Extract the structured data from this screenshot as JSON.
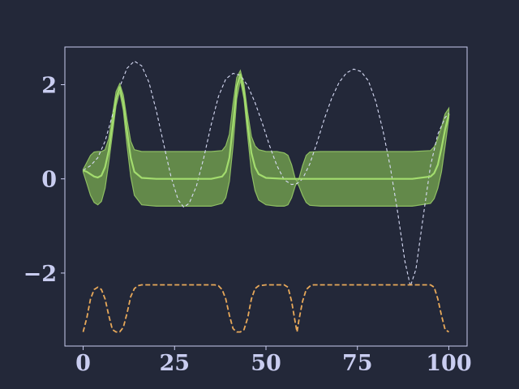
{
  "chart_data": {
    "type": "line",
    "title": "",
    "xlabel": "",
    "ylabel": "",
    "xlim": [
      -5,
      105
    ],
    "ylim": [
      -3.55,
      2.8
    ],
    "grid": false,
    "legend": "none",
    "x_ticks": [
      0,
      25,
      50,
      75,
      100
    ],
    "x_tick_labels": [
      "0",
      "25",
      "50",
      "75",
      "100"
    ],
    "y_ticks": [
      -2,
      0,
      2
    ],
    "y_tick_labels": [
      "−2",
      "0",
      "2"
    ],
    "colors": {
      "background": "#232839",
      "axes": "#c9cdf0",
      "mean": "#a3dc6e",
      "band_fill": "#6e9a4e",
      "band_edge": "#8fbf63",
      "target": "#d8dcf6",
      "bottom": "#e8a95a"
    },
    "series": [
      {
        "style": "dashed thin",
        "x": [
          0,
          2,
          4,
          6,
          8,
          10,
          12,
          14,
          16,
          18,
          20,
          22,
          24,
          26,
          27.5,
          29,
          31,
          33,
          35,
          37,
          39,
          41,
          43,
          45,
          47,
          49,
          51,
          53,
          55,
          57,
          58.5,
          60,
          62,
          64,
          66,
          68,
          70,
          72,
          74,
          76,
          78,
          80,
          82,
          84,
          86,
          88,
          89.5,
          91,
          93,
          95,
          97,
          99,
          100
        ],
        "y": [
          0.18,
          0.28,
          0.45,
          0.8,
          1.35,
          1.95,
          2.35,
          2.5,
          2.4,
          2.05,
          1.45,
          0.75,
          0.05,
          -0.45,
          -0.6,
          -0.52,
          -0.15,
          0.45,
          1.15,
          1.75,
          2.12,
          2.24,
          2.2,
          1.98,
          1.62,
          1.18,
          0.7,
          0.28,
          -0.02,
          -0.12,
          -0.1,
          0.0,
          0.32,
          0.78,
          1.28,
          1.72,
          2.05,
          2.25,
          2.33,
          2.28,
          2.08,
          1.65,
          1.02,
          0.25,
          -0.7,
          -1.75,
          -2.28,
          -1.92,
          -0.8,
          0.28,
          0.95,
          1.3,
          1.4
        ]
      },
      {
        "style": "solid",
        "x": [
          0,
          1,
          2,
          3,
          4,
          5,
          6,
          7,
          8,
          9,
          10,
          11,
          12,
          13,
          14,
          16,
          20,
          25,
          30,
          35,
          38,
          39,
          40,
          41,
          42,
          43,
          44,
          45,
          46,
          47,
          48,
          50,
          55,
          60,
          65,
          70,
          75,
          80,
          85,
          90,
          95,
          96,
          97,
          98,
          99,
          100
        ],
        "y": [
          0.18,
          0.15,
          0.1,
          0.05,
          0.03,
          0.07,
          0.25,
          0.6,
          1.15,
          1.7,
          1.95,
          1.62,
          1.0,
          0.45,
          0.15,
          0.02,
          0.0,
          0.0,
          0.0,
          0.0,
          0.05,
          0.15,
          0.45,
          1.15,
          1.95,
          2.22,
          1.85,
          1.15,
          0.55,
          0.25,
          0.1,
          0.02,
          0.0,
          0.0,
          0.0,
          0.0,
          0.0,
          0.0,
          0.0,
          0.0,
          0.05,
          0.12,
          0.3,
          0.65,
          1.05,
          1.38
        ]
      },
      {
        "style": "dashed",
        "x": [
          0,
          1,
          2,
          3,
          4,
          5,
          6,
          7,
          8,
          9,
          10,
          11,
          12,
          13,
          14,
          15,
          16,
          17,
          20,
          30,
          36,
          37,
          38,
          39,
          40,
          41,
          42,
          43,
          44,
          45,
          46,
          47,
          48,
          50,
          55,
          56,
          57,
          58,
          58.5,
          59,
          60,
          61,
          62,
          63,
          65,
          80,
          95,
          96,
          97,
          98,
          99,
          100
        ],
        "y": [
          -3.25,
          -2.95,
          -2.55,
          -2.35,
          -2.3,
          -2.35,
          -2.55,
          -2.9,
          -3.2,
          -3.25,
          -3.25,
          -3.15,
          -2.85,
          -2.5,
          -2.33,
          -2.27,
          -2.25,
          -2.25,
          -2.25,
          -2.25,
          -2.25,
          -2.27,
          -2.35,
          -2.55,
          -2.9,
          -3.18,
          -3.25,
          -3.25,
          -3.2,
          -2.95,
          -2.55,
          -2.33,
          -2.27,
          -2.25,
          -2.25,
          -2.3,
          -2.6,
          -3.05,
          -3.25,
          -3.0,
          -2.6,
          -2.35,
          -2.28,
          -2.25,
          -2.25,
          -2.25,
          -2.25,
          -2.3,
          -2.55,
          -2.9,
          -3.2,
          -3.25
        ]
      }
    ],
    "band": {
      "x": [
        0,
        1,
        2,
        3,
        4,
        5,
        6,
        7,
        8,
        9,
        10,
        11,
        12,
        13,
        14,
        16,
        20,
        25,
        30,
        35,
        38,
        39,
        40,
        41,
        42,
        43,
        44,
        45,
        46,
        47,
        48,
        50,
        53,
        55,
        56,
        57,
        58,
        58.5,
        59,
        60,
        61,
        62,
        65,
        70,
        75,
        80,
        85,
        90,
        95,
        96,
        97,
        98,
        99,
        100
      ],
      "upper": [
        0.2,
        0.35,
        0.5,
        0.57,
        0.58,
        0.58,
        0.62,
        0.85,
        1.35,
        1.85,
        2.02,
        1.78,
        1.25,
        0.8,
        0.62,
        0.58,
        0.58,
        0.58,
        0.58,
        0.58,
        0.6,
        0.7,
        0.95,
        1.6,
        2.15,
        2.3,
        2.0,
        1.4,
        0.9,
        0.7,
        0.62,
        0.58,
        0.58,
        0.55,
        0.5,
        0.3,
        0.0,
        -0.05,
        0.0,
        0.28,
        0.5,
        0.57,
        0.58,
        0.58,
        0.58,
        0.58,
        0.58,
        0.58,
        0.6,
        0.68,
        0.85,
        1.1,
        1.38,
        1.5
      ],
      "lower": [
        0.15,
        -0.1,
        -0.35,
        -0.5,
        -0.55,
        -0.48,
        -0.2,
        0.35,
        0.95,
        1.55,
        1.85,
        1.45,
        0.7,
        0.05,
        -0.35,
        -0.55,
        -0.58,
        -0.58,
        -0.58,
        -0.58,
        -0.52,
        -0.4,
        -0.05,
        0.7,
        1.7,
        2.1,
        1.7,
        0.9,
        0.15,
        -0.25,
        -0.45,
        -0.55,
        -0.58,
        -0.58,
        -0.55,
        -0.4,
        -0.15,
        -0.08,
        -0.15,
        -0.35,
        -0.5,
        -0.56,
        -0.58,
        -0.58,
        -0.58,
        -0.58,
        -0.58,
        -0.58,
        -0.52,
        -0.42,
        -0.2,
        0.15,
        0.7,
        1.3
      ]
    }
  }
}
